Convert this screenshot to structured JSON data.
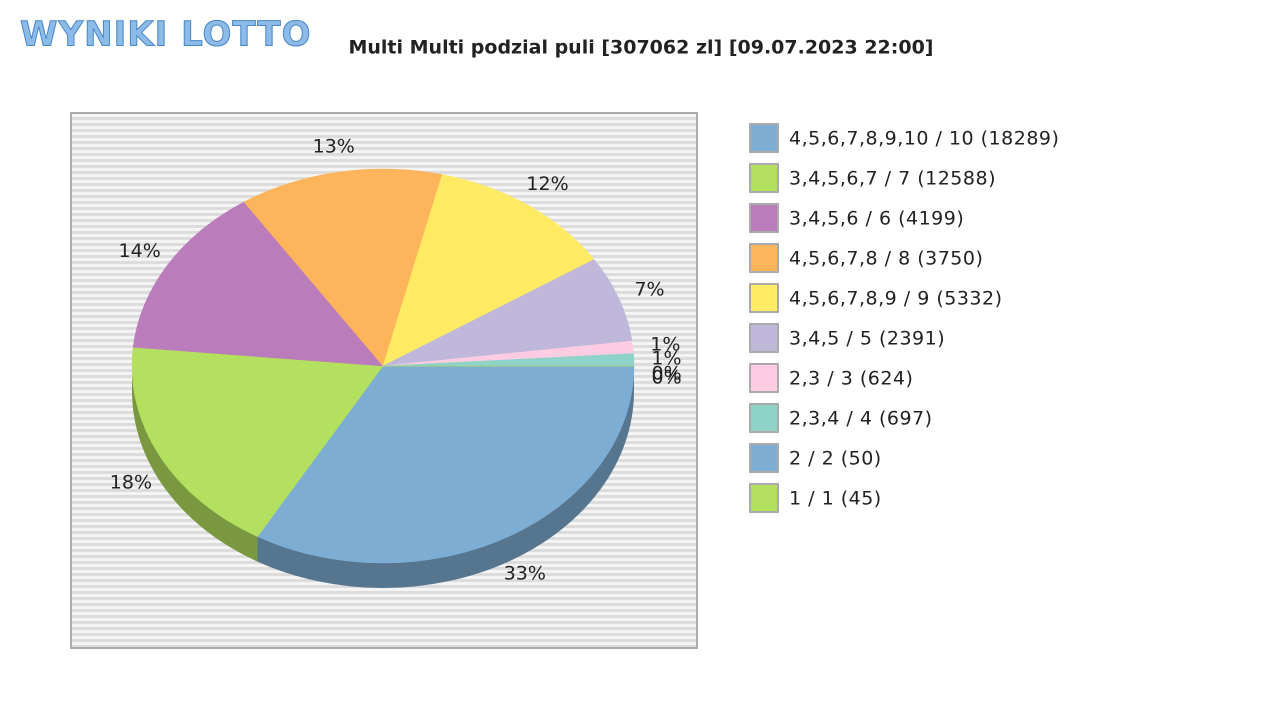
{
  "logo": "WYNIKI LOTTO",
  "chart_data": {
    "type": "pie",
    "title": "Multi Multi podzial puli [307062 zl] [09.07.2023 22:00]",
    "categories": [
      "4,5,6,7,8,9,10 / 10 (18289)",
      "3,4,5,6,7 / 7 (12588)",
      "3,4,5,6 / 6 (4199)",
      "4,5,6,7,8 / 8 (3750)",
      "4,5,6,7,8,9 / 9 (5332)",
      "3,4,5 / 5 (2391)",
      "2,3 / 3 (624)",
      "2,3,4 / 4 (697)",
      "2 / 2 (50)",
      "1 / 1 (45)"
    ],
    "values": [
      33,
      18,
      14,
      13,
      12,
      7,
      1,
      1,
      0,
      0
    ],
    "value_labels": [
      "33%",
      "18%",
      "14%",
      "13%",
      "12%",
      "7%",
      "1%",
      "1%",
      "0%",
      "0%"
    ],
    "colors": [
      "#7eadd4",
      "#b3e05e",
      "#bb7cbb",
      "#fdb45a",
      "#feea63",
      "#bfb8da",
      "#fdcce3",
      "#8fd3c8",
      "#7eadd4",
      "#b3e05e"
    ]
  }
}
